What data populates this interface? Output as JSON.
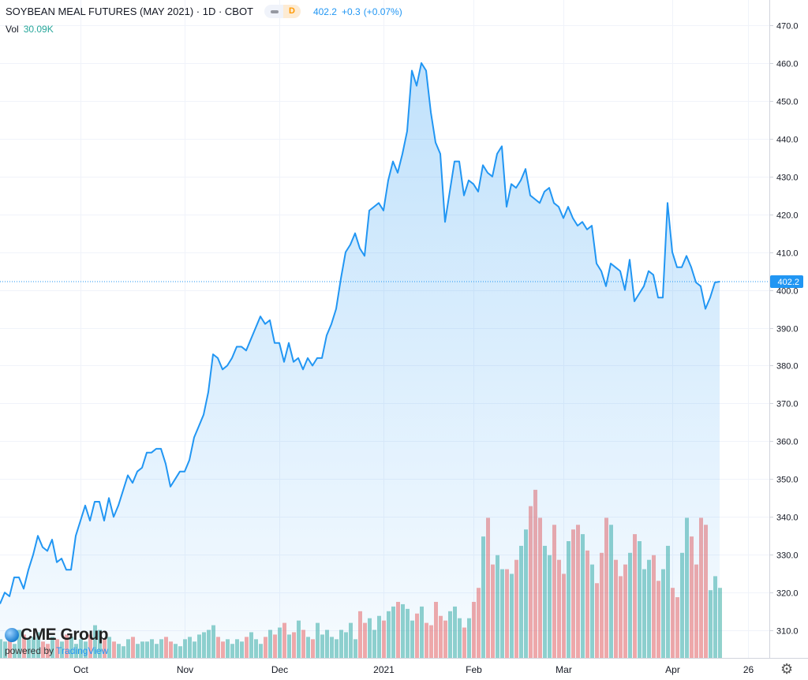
{
  "header": {
    "title": "SOYBEAN MEAL FUTURES (MAY 2021) · 1D · CBOT",
    "interval_badge": "D",
    "last": "402.2",
    "change": "+0.3",
    "change_pct": "(+0.07%)"
  },
  "volume_legend": {
    "label": "Vol",
    "value": "30.09K"
  },
  "logo": {
    "brand": "CME Group",
    "powered_by": "powered by",
    "platform": "TradingView"
  },
  "colors": {
    "line": "#2196f3",
    "up": "#26a69a",
    "down": "#ef5350"
  },
  "icons": {
    "settings": "gear-icon",
    "logo": "globe-icon"
  },
  "chart_data": {
    "type": "area",
    "title": "SOYBEAN MEAL FUTURES (MAY 2021)",
    "ylim": [
      305,
      472
    ],
    "y_ticks": [
      "470.0",
      "460.0",
      "450.0",
      "440.0",
      "430.0",
      "420.0",
      "410.0",
      "400.0",
      "390.0",
      "380.0",
      "370.0",
      "360.0",
      "350.0",
      "340.0",
      "330.0",
      "320.0",
      "310.0"
    ],
    "x_ticks": [
      {
        "label": "Oct",
        "index": 17
      },
      {
        "label": "Nov",
        "index": 39
      },
      {
        "label": "Dec",
        "index": 59
      },
      {
        "label": "2021",
        "index": 81
      },
      {
        "label": "Feb",
        "index": 100
      },
      {
        "label": "Mar",
        "index": 119
      },
      {
        "label": "Apr",
        "index": 142
      },
      {
        "label": "26",
        "index": 158
      }
    ],
    "last_price_label": "402.2",
    "close": [
      317,
      320,
      319,
      324,
      324,
      321,
      326,
      330,
      335,
      332,
      331,
      334,
      328,
      329,
      326,
      326,
      335,
      339,
      343,
      339,
      344,
      344,
      339,
      345,
      340,
      343,
      347,
      351,
      349,
      352,
      353,
      357,
      357,
      358,
      358,
      354,
      348,
      350,
      352,
      352,
      355,
      361,
      364,
      367,
      373,
      383,
      382,
      379,
      380,
      382,
      385,
      385,
      384,
      387,
      390,
      393,
      391,
      392,
      386,
      386,
      381,
      386,
      381,
      382,
      379,
      382,
      380,
      382,
      382,
      388,
      391,
      395,
      403,
      410,
      412,
      415,
      411,
      409,
      421,
      422,
      423,
      421,
      429,
      434,
      431,
      436,
      442,
      458,
      454,
      460,
      458,
      447,
      439,
      436,
      418,
      426,
      434,
      434,
      425,
      429,
      428,
      426,
      433,
      431,
      430,
      436,
      438,
      422,
      428,
      427,
      429,
      432,
      425,
      424,
      423,
      426,
      427,
      423,
      422,
      419,
      422,
      419,
      417,
      418,
      416,
      417,
      407,
      405,
      401,
      407,
      406,
      405,
      400,
      408,
      397,
      399,
      401,
      405,
      404,
      398,
      398,
      423,
      410,
      406,
      406,
      409,
      406,
      402,
      401,
      395,
      398,
      402,
      402.2
    ],
    "volume_k": [
      8,
      7,
      9,
      6,
      12,
      10,
      8,
      9,
      11,
      7,
      6,
      9,
      8,
      7,
      10,
      9,
      6,
      8,
      7,
      10,
      14,
      12,
      8,
      9,
      7,
      6,
      5,
      8,
      9,
      6,
      7,
      7,
      8,
      6,
      8,
      9,
      7,
      6,
      5,
      8,
      9,
      7,
      10,
      11,
      12,
      14,
      9,
      7,
      8,
      6,
      8,
      7,
      9,
      11,
      8,
      6,
      9,
      12,
      10,
      13,
      15,
      10,
      11,
      16,
      12,
      9,
      8,
      15,
      10,
      12,
      9,
      8,
      12,
      11,
      15,
      8,
      20,
      15,
      17,
      12,
      18,
      16,
      20,
      22,
      24,
      23,
      21,
      16,
      19,
      22,
      15,
      14,
      24,
      18,
      16,
      20,
      22,
      17,
      13,
      17,
      24,
      30,
      52,
      60,
      40,
      44,
      38,
      38,
      36,
      42,
      48,
      55,
      65,
      72,
      60,
      48,
      44,
      57,
      42,
      36,
      50,
      55,
      57,
      53,
      46,
      40,
      32,
      45,
      60,
      57,
      42,
      35,
      40,
      45,
      53,
      50,
      38,
      42,
      44,
      33,
      38,
      48,
      30,
      26,
      45,
      60,
      52,
      40,
      60,
      57,
      29,
      35,
      30
    ]
  }
}
